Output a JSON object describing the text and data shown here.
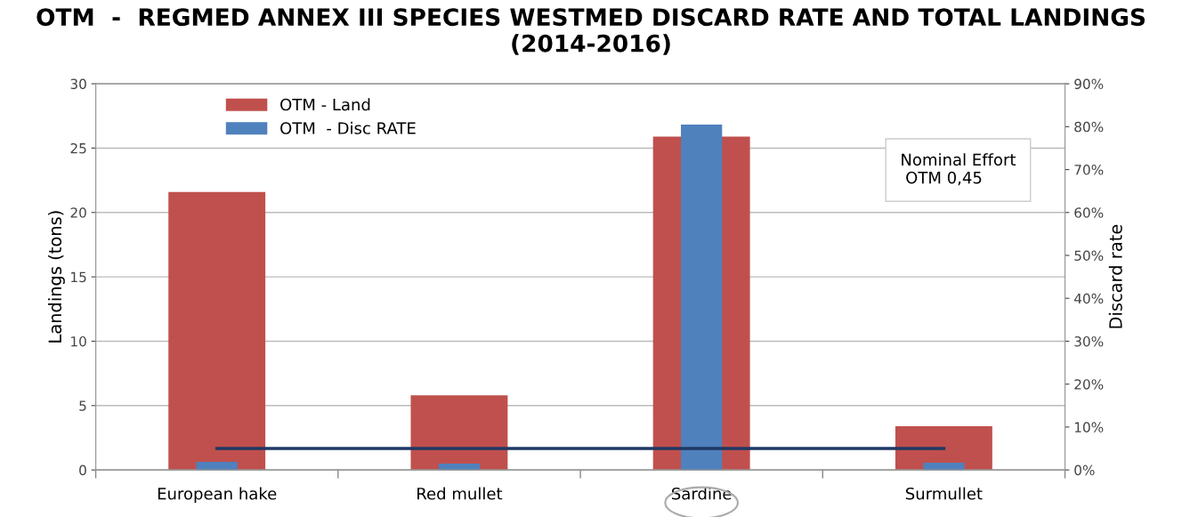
{
  "chart_data": {
    "type": "bar",
    "title": "OTM  -  REGMED ANNEX III SPECIES WESTMED DISCARD RATE AND TOTAL LANDINGS (2014-2016)",
    "categories": [
      "European hake",
      "Red mullet",
      "Sardine",
      "Surmullet"
    ],
    "series": [
      {
        "name": "OTM - Land",
        "color": "#c0504d",
        "values": [
          21.6,
          5.8,
          25.9,
          3.4
        ]
      },
      {
        "name": "OTM  - Disc RATE",
        "color": "#4f81bd",
        "values": [
          1.9,
          1.5,
          80.5,
          1.7
        ],
        "axis": "y2"
      },
      {
        "type": "line",
        "color": "#1f3864",
        "values": [
          5,
          5,
          5,
          5
        ],
        "axis": "y2"
      }
    ],
    "ylabel": "Landings (tons)",
    "y2label": "Discard rate",
    "ylim": [
      0,
      30
    ],
    "yticks": [
      0,
      5,
      10,
      15,
      20,
      25,
      30
    ],
    "y2lim": [
      0,
      90
    ],
    "y2ticks": [
      {
        "value": 0,
        "label": "0%"
      },
      {
        "value": 10,
        "label": "10%"
      },
      {
        "value": 20,
        "label": "20%"
      },
      {
        "value": 30,
        "label": "30%"
      },
      {
        "value": 40,
        "label": "40%"
      },
      {
        "value": 50,
        "label": "50%"
      },
      {
        "value": 60,
        "label": "60%"
      },
      {
        "value": 70,
        "label": "70%"
      },
      {
        "value": 80,
        "label": "80%"
      },
      {
        "value": 90,
        "label": "90%"
      }
    ],
    "annotations": [
      "Nominal Effort\n OTM 0,45"
    ],
    "grid": "y",
    "legend": "top left"
  }
}
